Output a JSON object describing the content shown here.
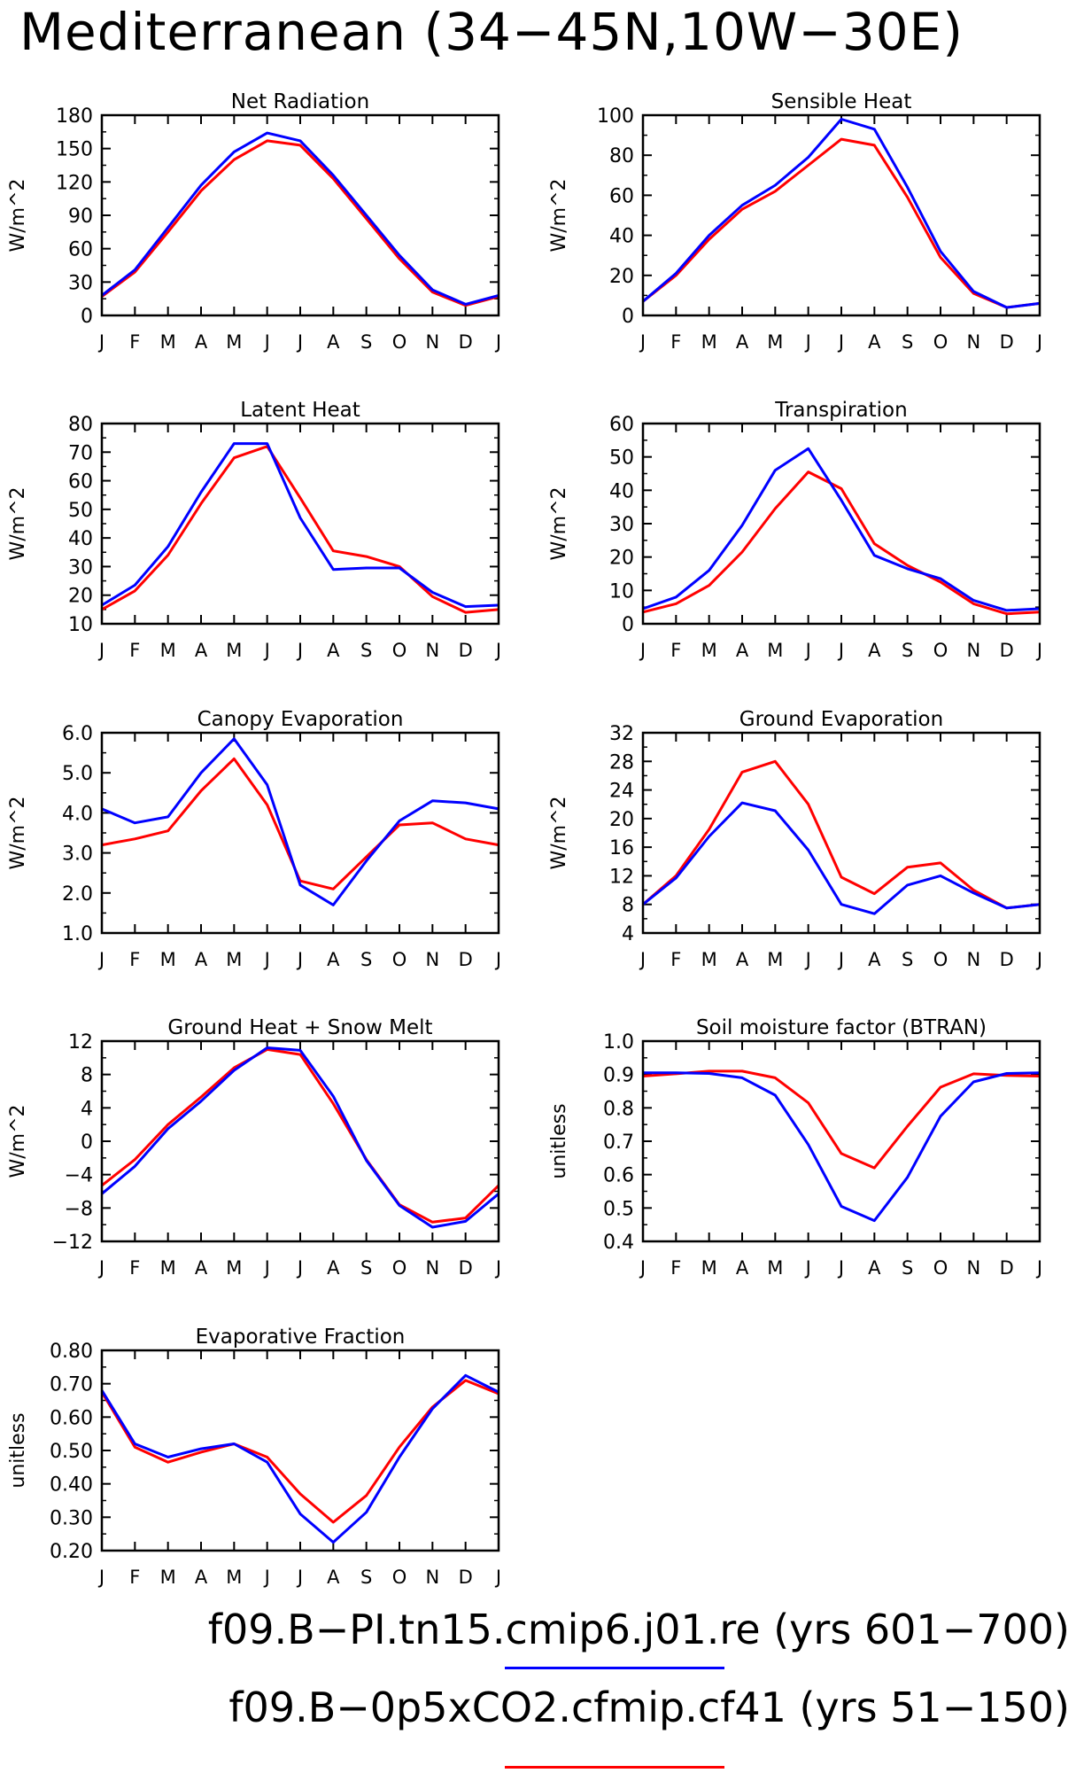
{
  "figure": {
    "title": "Mediterranean (34−45N,10W−30E)",
    "colors": {
      "blue": "#0000ff",
      "red": "#ff0000"
    }
  },
  "legend": [
    {
      "label": "f09.B−PI.tn15.cmip6.j01.re (yrs 601−700)",
      "color": "#0000ff"
    },
    {
      "label": "f09.B−0p5xCO2.cfmip.cf41 (yrs 51−150)",
      "color": "#ff0000"
    }
  ],
  "chart_data": [
    {
      "type": "line",
      "title": "Net Radiation",
      "ylabel": "W/m^2",
      "categories": [
        "J",
        "F",
        "M",
        "A",
        "M",
        "J",
        "J",
        "A",
        "S",
        "O",
        "N",
        "D",
        "J"
      ],
      "ylim": [
        0,
        180
      ],
      "yticks": [
        "0",
        "30",
        "60",
        "90",
        "120",
        "150",
        "180"
      ],
      "series": [
        {
          "color": "#ff0000",
          "values": [
            17,
            39,
            75,
            112,
            140,
            157,
            153,
            123,
            87,
            51,
            21,
            9,
            17
          ]
        },
        {
          "color": "#0000ff",
          "values": [
            18,
            41,
            79,
            117,
            147,
            164,
            157,
            126,
            90,
            54,
            23,
            10,
            18
          ]
        }
      ]
    },
    {
      "type": "line",
      "title": "Sensible Heat",
      "ylabel": "W/m^2",
      "categories": [
        "J",
        "F",
        "M",
        "A",
        "M",
        "J",
        "J",
        "A",
        "S",
        "O",
        "N",
        "D",
        "J"
      ],
      "ylim": [
        0,
        100
      ],
      "yticks": [
        "0",
        "20",
        "40",
        "60",
        "80",
        "100"
      ],
      "series": [
        {
          "color": "#ff0000",
          "values": [
            7,
            20,
            38,
            53,
            62,
            75,
            88,
            85,
            59,
            29,
            11,
            4,
            6
          ]
        },
        {
          "color": "#0000ff",
          "values": [
            7,
            21,
            40,
            55,
            65,
            79,
            98,
            93,
            64,
            32,
            12,
            4,
            6
          ]
        }
      ]
    },
    {
      "type": "line",
      "title": "Latent Heat",
      "ylabel": "W/m^2",
      "categories": [
        "J",
        "F",
        "M",
        "A",
        "M",
        "J",
        "J",
        "A",
        "S",
        "O",
        "N",
        "D",
        "J"
      ],
      "ylim": [
        10,
        80
      ],
      "yticks": [
        "10",
        "20",
        "30",
        "40",
        "50",
        "60",
        "70",
        "80"
      ],
      "series": [
        {
          "color": "#ff0000",
          "values": [
            15,
            21.5,
            34,
            52,
            68,
            72,
            54,
            35.5,
            33.5,
            30,
            19.5,
            14,
            15
          ]
        },
        {
          "color": "#0000ff",
          "values": [
            16.5,
            23.5,
            37,
            56,
            73,
            73,
            47,
            29,
            29.5,
            29.5,
            21,
            16,
            16.5
          ]
        }
      ]
    },
    {
      "type": "line",
      "title": "Transpiration",
      "ylabel": "W/m^2",
      "categories": [
        "J",
        "F",
        "M",
        "A",
        "M",
        "J",
        "J",
        "A",
        "S",
        "O",
        "N",
        "D",
        "J"
      ],
      "ylim": [
        0,
        60
      ],
      "yticks": [
        "0",
        "10",
        "20",
        "30",
        "40",
        "50",
        "60"
      ],
      "series": [
        {
          "color": "#ff0000",
          "values": [
            3.5,
            6,
            11.5,
            21.5,
            34.5,
            45.5,
            40.5,
            24,
            17.5,
            12.5,
            6,
            3,
            3.5
          ]
        },
        {
          "color": "#0000ff",
          "values": [
            4.5,
            8,
            16,
            29.5,
            46,
            52.5,
            37,
            20.5,
            16.5,
            13.5,
            7,
            4,
            4.5
          ]
        }
      ]
    },
    {
      "type": "line",
      "title": "Canopy Evaporation",
      "ylabel": "W/m^2",
      "categories": [
        "J",
        "F",
        "M",
        "A",
        "M",
        "J",
        "J",
        "A",
        "S",
        "O",
        "N",
        "D",
        "J"
      ],
      "ylim": [
        1.0,
        6.0
      ],
      "yticks": [
        "1.0",
        "2.0",
        "3.0",
        "4.0",
        "5.0",
        "6.0"
      ],
      "series": [
        {
          "color": "#ff0000",
          "values": [
            3.2,
            3.35,
            3.55,
            4.55,
            5.35,
            4.2,
            2.3,
            2.1,
            2.9,
            3.7,
            3.75,
            3.35,
            3.2
          ]
        },
        {
          "color": "#0000ff",
          "values": [
            4.1,
            3.75,
            3.9,
            5.0,
            5.85,
            4.7,
            2.2,
            1.7,
            2.8,
            3.8,
            4.3,
            4.25,
            4.1
          ]
        }
      ]
    },
    {
      "type": "line",
      "title": "Ground Evaporation",
      "ylabel": "W/m^2",
      "categories": [
        "J",
        "F",
        "M",
        "A",
        "M",
        "J",
        "J",
        "A",
        "S",
        "O",
        "N",
        "D",
        "J"
      ],
      "ylim": [
        4,
        32
      ],
      "yticks": [
        "4",
        "8",
        "12",
        "16",
        "20",
        "24",
        "28",
        "32"
      ],
      "series": [
        {
          "color": "#ff0000",
          "values": [
            8,
            12,
            18.5,
            26.5,
            28,
            22,
            11.8,
            9.5,
            13.2,
            13.8,
            10,
            7.5,
            8
          ]
        },
        {
          "color": "#0000ff",
          "values": [
            8,
            11.7,
            17.5,
            22.2,
            21.1,
            15.6,
            8,
            6.7,
            10.7,
            12,
            9.6,
            7.5,
            8
          ]
        }
      ]
    },
    {
      "type": "line",
      "title": "Ground Heat + Snow Melt",
      "ylabel": "W/m^2",
      "categories": [
        "J",
        "F",
        "M",
        "A",
        "M",
        "J",
        "J",
        "A",
        "S",
        "O",
        "N",
        "D",
        "J"
      ],
      "ylim": [
        -12,
        12
      ],
      "yticks": [
        "−12",
        "−8",
        "−4",
        "0",
        "4",
        "8",
        "12"
      ],
      "series": [
        {
          "color": "#ff0000",
          "values": [
            -5.3,
            -2.2,
            2.0,
            5.3,
            8.8,
            11.0,
            10.4,
            4.5,
            -2.2,
            -7.6,
            -9.7,
            -9.2,
            -5.3
          ]
        },
        {
          "color": "#0000ff",
          "values": [
            -6.3,
            -3.0,
            1.5,
            4.8,
            8.5,
            11.2,
            10.9,
            5.4,
            -2.3,
            -7.7,
            -10.3,
            -9.6,
            -6.3
          ]
        }
      ]
    },
    {
      "type": "line",
      "title": "Soil moisture factor (BTRAN)",
      "ylabel": "unitless",
      "categories": [
        "J",
        "F",
        "M",
        "A",
        "M",
        "J",
        "J",
        "A",
        "S",
        "O",
        "N",
        "D",
        "J"
      ],
      "ylim": [
        0.4,
        1.0
      ],
      "yticks": [
        "0.4",
        "0.5",
        "0.6",
        "0.7",
        "0.8",
        "0.9",
        "1.0"
      ],
      "series": [
        {
          "color": "#ff0000",
          "values": [
            0.895,
            0.902,
            0.91,
            0.91,
            0.89,
            0.815,
            0.663,
            0.62,
            0.745,
            0.862,
            0.902,
            0.897,
            0.895
          ]
        },
        {
          "color": "#0000ff",
          "values": [
            0.905,
            0.905,
            0.903,
            0.89,
            0.838,
            0.69,
            0.505,
            0.462,
            0.592,
            0.775,
            0.878,
            0.903,
            0.905
          ]
        }
      ]
    },
    {
      "type": "line",
      "title": "Evaporative Fraction",
      "ylabel": "unitless",
      "categories": [
        "J",
        "F",
        "M",
        "A",
        "M",
        "J",
        "J",
        "A",
        "S",
        "O",
        "N",
        "D",
        "J"
      ],
      "ylim": [
        0.2,
        0.8
      ],
      "yticks": [
        "0.20",
        "0.30",
        "0.40",
        "0.50",
        "0.60",
        "0.70",
        "0.80"
      ],
      "series": [
        {
          "color": "#ff0000",
          "values": [
            0.675,
            0.51,
            0.465,
            0.495,
            0.52,
            0.48,
            0.37,
            0.285,
            0.365,
            0.51,
            0.63,
            0.71,
            0.67
          ]
        },
        {
          "color": "#0000ff",
          "values": [
            0.68,
            0.52,
            0.48,
            0.505,
            0.52,
            0.465,
            0.31,
            0.225,
            0.315,
            0.48,
            0.625,
            0.725,
            0.675
          ]
        }
      ]
    }
  ]
}
